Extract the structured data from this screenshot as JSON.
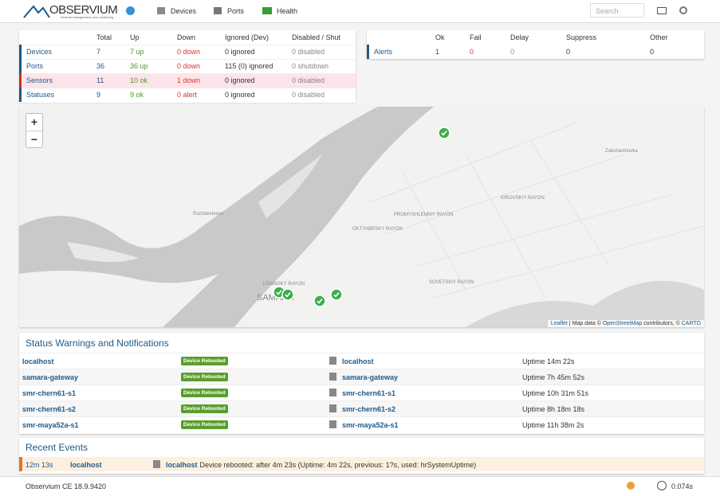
{
  "navbar": {
    "brand": "OBSERVIUM",
    "tagline": "network management and monitoring",
    "menu": [
      "Devices",
      "Ports",
      "Health"
    ],
    "search_placeholder": "Search"
  },
  "summary": {
    "headers": [
      "Total",
      "Up",
      "Down",
      "Ignored (Dev)",
      "Disabled / Shut"
    ],
    "rows": [
      [
        "Devices",
        "7",
        "7 up",
        "0 down",
        "0 ignored",
        "0 disabled"
      ],
      [
        "Ports",
        "36",
        "36 up",
        "0 down",
        "115 (0) ignored",
        "0 shutdown"
      ],
      [
        "Sensors",
        "11",
        "10 ok",
        "1 down",
        "0 ignored",
        "0 disabled"
      ],
      [
        "Statuses",
        "9",
        "9 ok",
        "0 alert",
        "0 ignored",
        "0 disabled"
      ]
    ]
  },
  "alerts": {
    "headers": [
      "Ok",
      "Fail",
      "Delay",
      "Suppress",
      "Other"
    ],
    "rows": [
      [
        "Alerts",
        "1",
        "0",
        "0",
        "0",
        "0"
      ]
    ]
  },
  "map": {
    "zoom_in": "+",
    "zoom_out": "−",
    "labels": [
      "Rozhdestveno",
      "SAMARA",
      "OKTYABRSKY RAYON",
      "PROMYSHLENNIY RAYON",
      "KIROVSKIY RAYON",
      "Zubchaninovka",
      "SOVETSKIY RAYON",
      "LENINSKY RAYON"
    ],
    "attribution": [
      "Leaflet",
      " | Map data © ",
      "OpenStreetMap",
      " contributors, © ",
      "CARTO"
    ]
  },
  "status_warnings": {
    "title": "Status Warnings and Notifications",
    "rows": [
      {
        "device": "localhost",
        "badge": "Device Rebooted",
        "target": "localhost",
        "detail": "Uptime 14m 22s"
      },
      {
        "device": "samara-gateway",
        "badge": "Device Rebooted",
        "target": "samara-gateway",
        "detail": "Uptime 7h 45m 52s"
      },
      {
        "device": "smr-chern61-s1",
        "badge": "Device Rebooted",
        "target": "smr-chern61-s1",
        "detail": "Uptime 10h 31m 51s"
      },
      {
        "device": "smr-chern61-s2",
        "badge": "Device Rebooted",
        "target": "smr-chern61-s2",
        "detail": "Uptime 8h 18m 18s"
      },
      {
        "device": "smr-maya52a-s1",
        "badge": "Device Rebooted",
        "target": "smr-maya52a-s1",
        "detail": "Uptime 11h 38m 2s"
      }
    ]
  },
  "recent_events": {
    "title": "Recent Events",
    "rows": [
      {
        "time": "12m 13s",
        "device": "localhost",
        "entity": "localhost",
        "message": "Device rebooted: after 4m 23s (Uptime: 4m 22s, previous: 1?s, used: hrSystemUptime)"
      }
    ]
  },
  "footer": {
    "version": "Observium CE 18.9.9420",
    "time": "0.074s"
  }
}
